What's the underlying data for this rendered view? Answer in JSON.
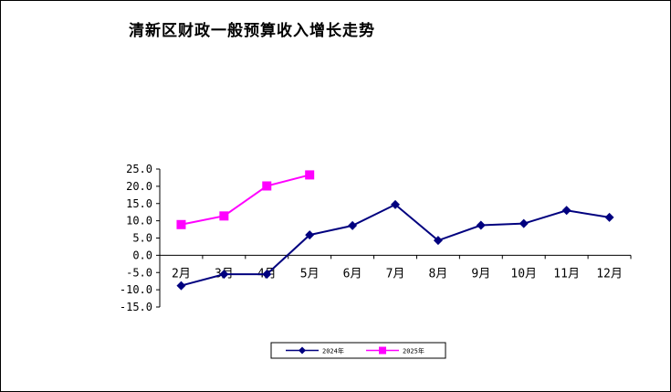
{
  "chart_data": {
    "type": "line",
    "title": "清新区财政一般预算收入增长走势",
    "categories": [
      "2月",
      "3月",
      "4月",
      "5月",
      "6月",
      "7月",
      "8月",
      "9月",
      "10月",
      "11月",
      "12月"
    ],
    "yticks": [
      "25.0",
      "20.0",
      "15.0",
      "10.0",
      "5.0",
      "0.0",
      "-5.0",
      "-10.0",
      "-15.0"
    ],
    "ylim": [
      -15,
      25
    ],
    "grid": false,
    "legend_position": "bottom",
    "series": [
      {
        "name": "2024年",
        "color": "#00007F",
        "marker": "diamond",
        "values": [
          -8.8,
          -5.5,
          -5.5,
          5.9,
          8.6,
          14.7,
          4.3,
          8.7,
          9.2,
          13.0,
          11.0
        ]
      },
      {
        "name": "2025年",
        "color": "#FF00FF",
        "marker": "square",
        "values": [
          8.9,
          11.4,
          20.1,
          23.3,
          null,
          null,
          null,
          null,
          null,
          null,
          null
        ]
      }
    ]
  }
}
